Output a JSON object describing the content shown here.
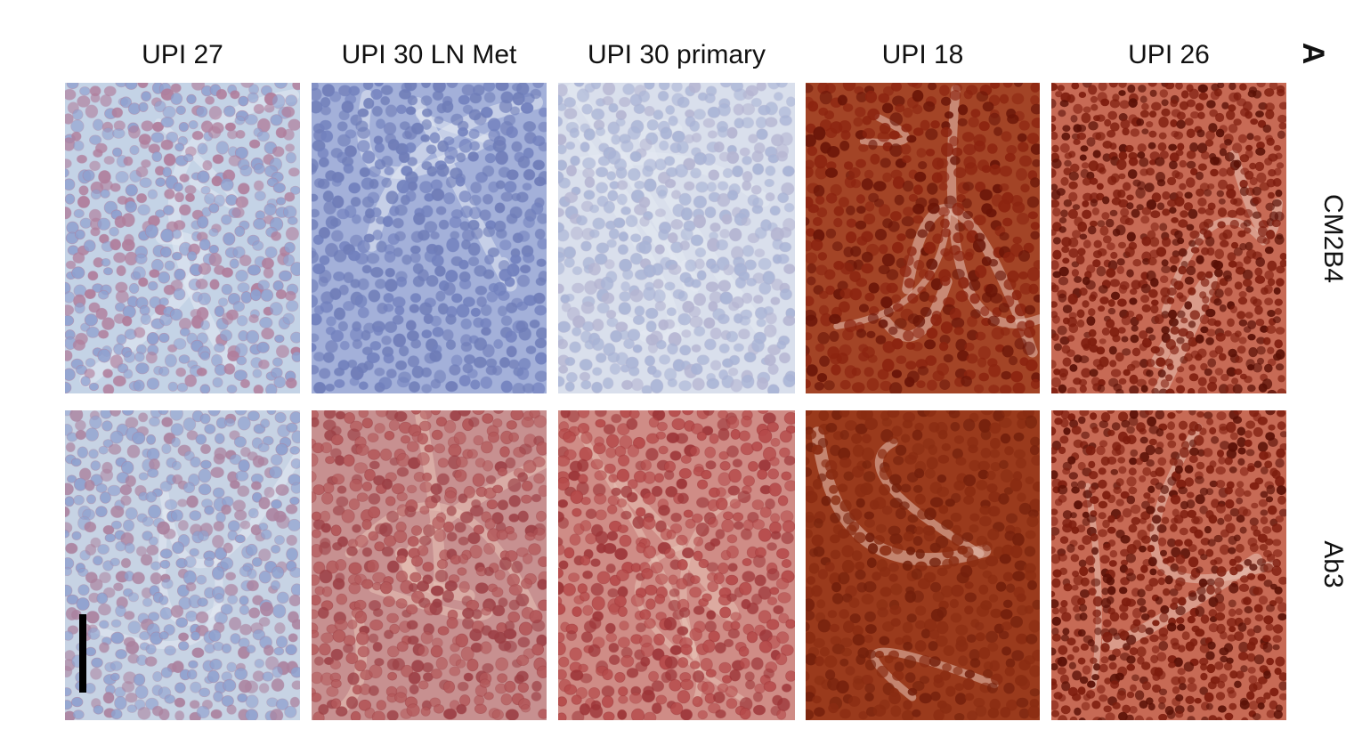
{
  "figure": {
    "panel_letter": "A",
    "columns": [
      {
        "label": "UPI 27"
      },
      {
        "label": "UPI 30 LN Met"
      },
      {
        "label": "UPI 30 primary"
      },
      {
        "label": "UPI 18"
      },
      {
        "label": "UPI 26"
      }
    ],
    "rows": [
      {
        "label": "CM2B4"
      },
      {
        "label": "Ab3"
      }
    ],
    "panels": [
      [
        {
          "stain": "weak",
          "bg": "#c4d3e6",
          "cell_color": "#8fa0cf",
          "nucleus_color": "#b07e9c",
          "tissue": "blue"
        },
        {
          "stain": "negative",
          "bg": "#a3b0d9",
          "cell_color": "#6f7db8",
          "nucleus_color": "#7281be",
          "tissue": "blue"
        },
        {
          "stain": "negative",
          "bg": "#d9dfec",
          "cell_color": "#a9b4d6",
          "nucleus_color": "#b5b5d2",
          "tissue": "blue"
        },
        {
          "stain": "strong",
          "bg": "#a34426",
          "cell_color": "#8c2410",
          "nucleus_color": "#6a1508",
          "tissue": "brown"
        },
        {
          "stain": "strong",
          "bg": "#c76a55",
          "cell_color": "#7e1d0e",
          "nucleus_color": "#5a1006",
          "tissue": "brown"
        }
      ],
      [
        {
          "stain": "weak",
          "bg": "#c7d3e4",
          "cell_color": "#8fa1cf",
          "nucleus_color": "#ab829f",
          "tissue": "blue"
        },
        {
          "stain": "moderate",
          "bg": "#c79090",
          "cell_color": "#b4585a",
          "nucleus_color": "#9c3f45",
          "tissue": "red"
        },
        {
          "stain": "moderate",
          "bg": "#cf8c86",
          "cell_color": "#b64a4a",
          "nucleus_color": "#9d3538",
          "tissue": "red"
        },
        {
          "stain": "strong",
          "bg": "#9a3a1c",
          "cell_color": "#8a2c12",
          "nucleus_color": "#74200c",
          "tissue": "brown"
        },
        {
          "stain": "strong",
          "bg": "#c76a55",
          "cell_color": "#7e1d0e",
          "nucleus_color": "#5a1006",
          "tissue": "brown"
        }
      ]
    ],
    "scale_bar_color": "#000000"
  }
}
